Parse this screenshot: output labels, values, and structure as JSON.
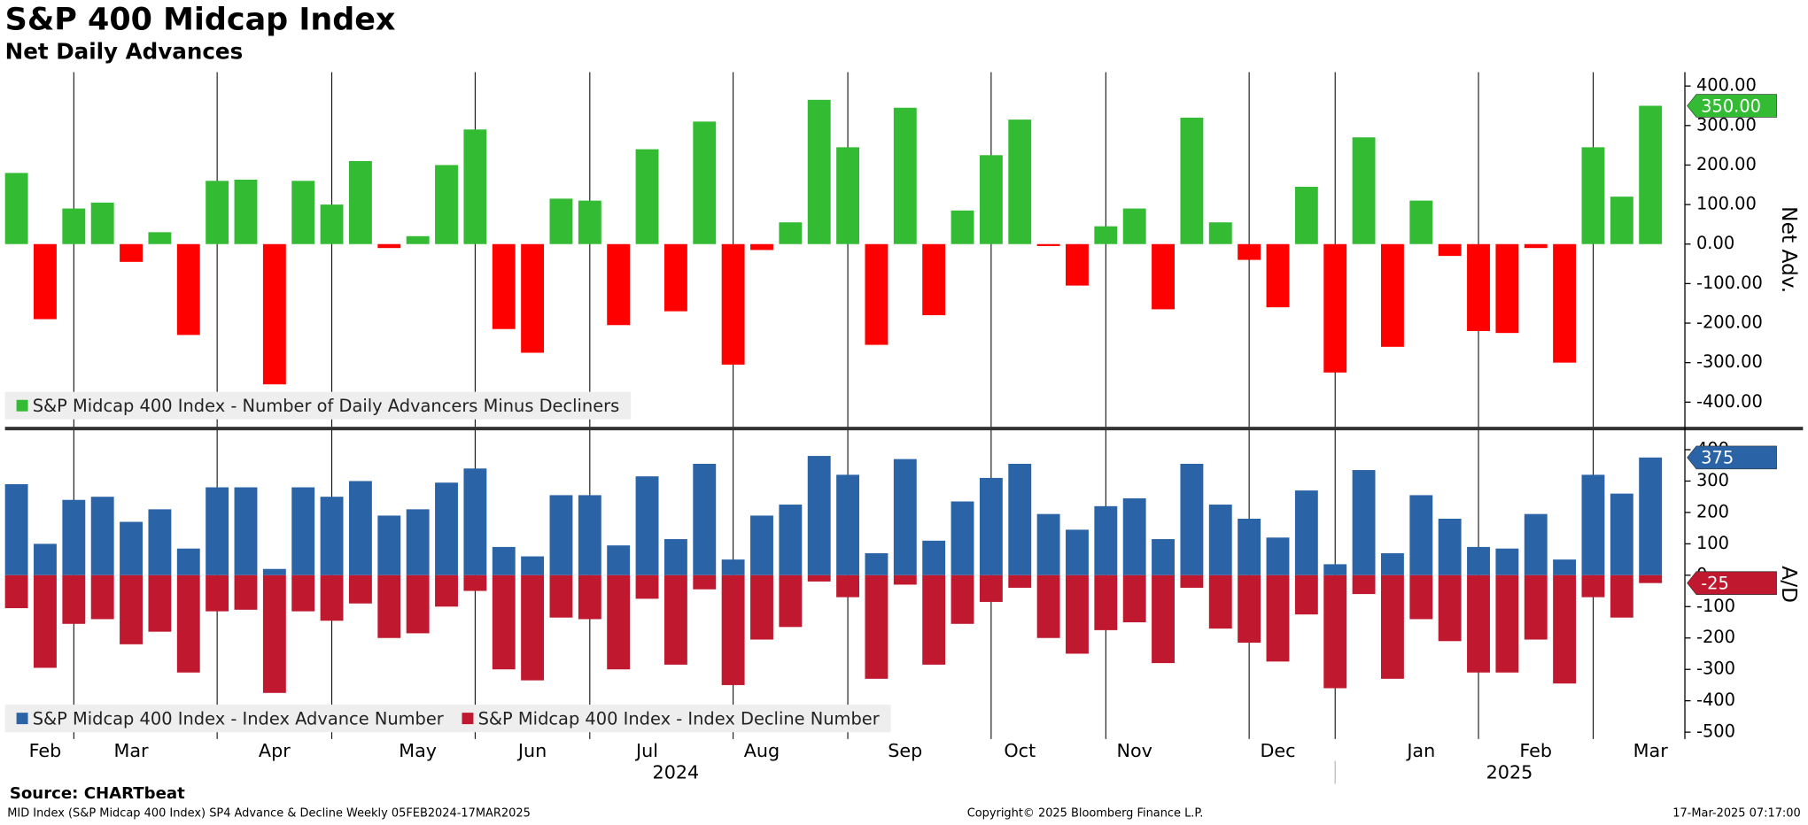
{
  "chart_data": [
    {
      "type": "bar",
      "title": "S&P 400 Midcap Index",
      "subtitle": "Net Daily Advances",
      "y_label": "Net Adv.",
      "ylim": [
        -461,
        435
      ],
      "yticks": [
        {
          "value": 400,
          "label": "400.00"
        },
        {
          "value": 300,
          "label": "300.00"
        },
        {
          "value": 200,
          "label": "200.00"
        },
        {
          "value": 100,
          "label": "100.00"
        },
        {
          "value": 0,
          "label": "0.00"
        },
        {
          "value": -100,
          "label": "-100.00"
        },
        {
          "value": -200,
          "label": "-200.00"
        },
        {
          "value": -300,
          "label": "-300.00"
        },
        {
          "value": -400,
          "label": "-400.00"
        }
      ],
      "series": [
        {
          "name": "S&P Midcap 400 Index - Number of Daily Advancers Minus Decliners",
          "color": "#33bb33",
          "negative_color": "#ff0000",
          "values": [
            180,
            -190,
            90,
            105,
            -45,
            30,
            -230,
            160,
            163,
            -355,
            160,
            100,
            210,
            -10,
            20,
            200,
            290,
            -215,
            -275,
            115,
            110,
            -205,
            240,
            -170,
            310,
            -305,
            -15,
            55,
            365,
            245,
            -255,
            345,
            -180,
            85,
            225,
            315,
            -5,
            -105,
            45,
            90,
            -165,
            320,
            55,
            -40,
            -160,
            145,
            -325,
            270,
            -260,
            110,
            -30,
            -220,
            -225,
            -10,
            -300,
            245,
            120,
            350
          ],
          "value_labels": [
            null,
            null,
            null,
            null,
            null,
            null,
            null,
            null,
            null,
            null,
            null,
            null,
            null,
            null,
            null,
            null,
            null,
            null,
            null,
            null,
            null,
            null,
            null,
            null,
            null,
            null,
            null,
            null,
            null,
            null,
            null,
            null,
            null,
            null,
            null,
            null,
            null,
            null,
            null,
            null,
            null,
            null,
            null,
            null,
            null,
            null,
            null,
            null,
            null,
            null,
            null,
            null,
            null,
            null,
            null,
            null,
            null,
            "350.00"
          ]
        }
      ]
    },
    {
      "type": "bar",
      "y_label": "A/D",
      "ylim": [
        -522,
        460
      ],
      "yticks": [
        400,
        300,
        200,
        100,
        0,
        -100,
        -200,
        -300,
        -400,
        -500
      ],
      "categories": [
        null,
        "Feb",
        null,
        null,
        "Mar",
        null,
        null,
        null,
        null,
        "Apr",
        null,
        null,
        null,
        null,
        "May",
        null,
        null,
        null,
        "Jun",
        null,
        null,
        null,
        "Jul",
        null,
        null,
        null,
        "Aug",
        null,
        null,
        null,
        null,
        "Sep",
        null,
        null,
        null,
        "Oct",
        null,
        null,
        null,
        "Nov",
        null,
        null,
        null,
        null,
        "Dec",
        null,
        null,
        null,
        null,
        "Jan",
        null,
        null,
        null,
        "Feb",
        null,
        null,
        null,
        "Mar"
      ],
      "year_labels": [
        "2024",
        "2025"
      ],
      "series": [
        {
          "name": "S&P Midcap 400 Index - Index Advance Number",
          "color": "#2b64a6",
          "values": [
            290,
            100,
            240,
            250,
            170,
            210,
            85,
            280,
            280,
            20,
            280,
            250,
            300,
            190,
            210,
            295,
            340,
            90,
            60,
            255,
            255,
            95,
            315,
            115,
            355,
            50,
            190,
            225,
            380,
            320,
            70,
            370,
            110,
            235,
            310,
            355,
            195,
            145,
            220,
            245,
            115,
            355,
            225,
            180,
            120,
            270,
            35,
            335,
            70,
            255,
            180,
            90,
            85,
            195,
            50,
            320,
            260,
            375
          ],
          "value_labels": [
            null,
            null,
            null,
            null,
            null,
            null,
            null,
            null,
            null,
            null,
            null,
            null,
            null,
            null,
            null,
            null,
            null,
            null,
            null,
            null,
            null,
            null,
            null,
            null,
            null,
            null,
            null,
            null,
            null,
            null,
            null,
            null,
            null,
            null,
            null,
            null,
            null,
            null,
            null,
            null,
            null,
            null,
            null,
            null,
            null,
            null,
            null,
            null,
            null,
            null,
            null,
            null,
            null,
            null,
            null,
            null,
            null,
            "375"
          ]
        },
        {
          "name": "S&P Midcap 400 Index - Index Decline Number",
          "color": "#c0182f",
          "values": [
            -105,
            -295,
            -155,
            -140,
            -220,
            -180,
            -310,
            -115,
            -110,
            -375,
            -115,
            -145,
            -90,
            -200,
            -185,
            -100,
            -50,
            -300,
            -335,
            -135,
            -140,
            -300,
            -75,
            -285,
            -45,
            -350,
            -205,
            -165,
            -20,
            -70,
            -330,
            -30,
            -285,
            -155,
            -85,
            -40,
            -200,
            -250,
            -175,
            -150,
            -280,
            -40,
            -170,
            -215,
            -275,
            -125,
            -360,
            -60,
            -330,
            -140,
            -210,
            -310,
            -310,
            -205,
            -345,
            -70,
            -135,
            -25
          ],
          "value_labels": [
            null,
            null,
            null,
            null,
            null,
            null,
            null,
            null,
            null,
            null,
            null,
            null,
            null,
            null,
            null,
            null,
            null,
            null,
            null,
            null,
            null,
            null,
            null,
            null,
            null,
            null,
            null,
            null,
            null,
            null,
            null,
            null,
            null,
            null,
            null,
            null,
            null,
            null,
            null,
            null,
            null,
            null,
            null,
            null,
            null,
            null,
            null,
            null,
            null,
            null,
            null,
            null,
            null,
            null,
            null,
            null,
            null,
            "-25"
          ]
        }
      ]
    }
  ],
  "footer": {
    "source": "Source: CHARTbeat",
    "description": "MID Index (S&P Midcap 400 Index) SP4 Advance & Decline  Weekly 05FEB2024-17MAR2025",
    "copyright": "Copyright© 2025 Bloomberg Finance L.P.",
    "timestamp": "17-Mar-2025 07:17:00"
  }
}
